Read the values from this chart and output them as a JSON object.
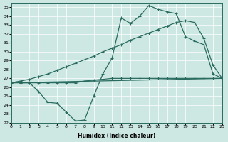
{
  "xlabel": "Humidex (Indice chaleur)",
  "xlim": [
    0,
    23
  ],
  "ylim": [
    22,
    35.5
  ],
  "xticks": [
    0,
    1,
    2,
    3,
    4,
    5,
    6,
    7,
    8,
    9,
    10,
    11,
    12,
    13,
    14,
    15,
    16,
    17,
    18,
    19,
    20,
    21,
    22,
    23
  ],
  "yticks": [
    22,
    23,
    24,
    25,
    26,
    27,
    28,
    29,
    30,
    31,
    32,
    33,
    34,
    35
  ],
  "bg_color": "#cde8e3",
  "line_color": "#2a6b60",
  "line_width": 0.9,
  "marker_size": 2.5,
  "line1_x": [
    0,
    23
  ],
  "line1_y": [
    26.5,
    27.0
  ],
  "line2_x": [
    0,
    1,
    2,
    3,
    4,
    5,
    6,
    7,
    8,
    9,
    10,
    11,
    12,
    13,
    14,
    15,
    16,
    17,
    18,
    19,
    20,
    21,
    22,
    23
  ],
  "line2_y": [
    26.5,
    26.7,
    26.9,
    27.2,
    27.5,
    27.9,
    28.3,
    28.7,
    29.1,
    29.5,
    30.0,
    30.4,
    30.8,
    31.3,
    31.7,
    32.1,
    32.5,
    32.9,
    33.3,
    33.5,
    33.3,
    31.5,
    28.5,
    27.0
  ],
  "line3_x": [
    0,
    1,
    2,
    3,
    4,
    5,
    6,
    7,
    8,
    9,
    10,
    11,
    12,
    13,
    14,
    15,
    16,
    17,
    18,
    19,
    20,
    21,
    22,
    23
  ],
  "line3_y": [
    26.5,
    26.5,
    26.5,
    26.5,
    26.5,
    26.5,
    26.5,
    26.5,
    26.7,
    26.8,
    26.9,
    27.0,
    27.0,
    27.0,
    27.0,
    27.0,
    27.0,
    27.0,
    27.0,
    27.0,
    27.0,
    27.0,
    27.0,
    27.0
  ],
  "line4_x": [
    1,
    2,
    3,
    4,
    5,
    6,
    7,
    8,
    9,
    10,
    11,
    12,
    13,
    14,
    15,
    16,
    17,
    18,
    19,
    20,
    21,
    22,
    23
  ],
  "line4_y": [
    26.5,
    26.5,
    25.5,
    24.3,
    24.2,
    23.2,
    22.2,
    22.3,
    25.0,
    27.5,
    29.3,
    33.8,
    33.2,
    34.0,
    35.2,
    34.8,
    34.5,
    34.3,
    31.7,
    31.2,
    30.8,
    27.5,
    27.0
  ]
}
